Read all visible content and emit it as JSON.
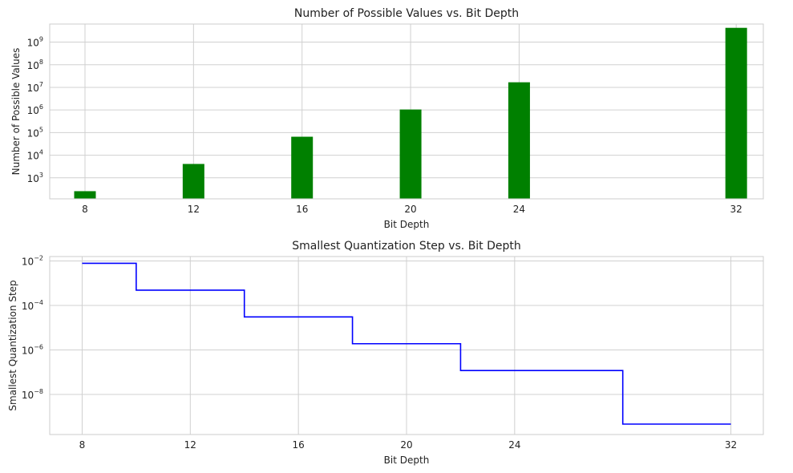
{
  "chart_data": [
    {
      "type": "bar",
      "title": "Number of Possible Values vs. Bit Depth",
      "xlabel": "Bit Depth",
      "ylabel": "Number of Possible Values",
      "categories": [
        8,
        12,
        16,
        20,
        24,
        32
      ],
      "x_tick_labels": [
        "8",
        "12",
        "16",
        "20",
        "24",
        "32"
      ],
      "values": [
        256,
        4096,
        65536,
        1048576,
        16777216,
        4294967296
      ],
      "y_scale": "log",
      "y_tick_labels": [
        {
          "base": "10",
          "exp": "3"
        },
        {
          "base": "10",
          "exp": "4"
        },
        {
          "base": "10",
          "exp": "5"
        },
        {
          "base": "10",
          "exp": "6"
        },
        {
          "base": "10",
          "exp": "7"
        },
        {
          "base": "10",
          "exp": "8"
        },
        {
          "base": "10",
          "exp": "9"
        }
      ],
      "y_tick_values": [
        1000,
        10000,
        100000,
        1000000,
        10000000,
        100000000,
        1000000000
      ],
      "xlim": [
        6.7,
        33.0
      ],
      "ylim_log10": [
        2.07,
        9.8
      ],
      "bar_color": "#008000",
      "grid": true
    },
    {
      "type": "line",
      "step": "mid",
      "title": "Smallest Quantization Step vs. Bit Depth",
      "xlabel": "Bit Depth",
      "ylabel": "Smallest Quantization Step",
      "x": [
        8,
        12,
        16,
        20,
        24,
        32
      ],
      "x_tick_labels": [
        "8",
        "12",
        "16",
        "20",
        "24",
        "32"
      ],
      "values": [
        0.00784,
        0.000488,
        3.05e-05,
        1.91e-06,
        1.19e-07,
        4.66e-10
      ],
      "y_scale": "log",
      "y_tick_labels": [
        {
          "base": "10",
          "exp": "−2"
        },
        {
          "base": "10",
          "exp": "−4"
        },
        {
          "base": "10",
          "exp": "−6"
        },
        {
          "base": "10",
          "exp": "−8"
        }
      ],
      "y_tick_values": [
        0.01,
        0.0001,
        1e-06,
        1e-08
      ],
      "xlim": [
        6.8,
        33.2
      ],
      "ylim_log10": [
        -9.8,
        -1.8
      ],
      "line_color": "#0000ff",
      "grid": true
    }
  ]
}
